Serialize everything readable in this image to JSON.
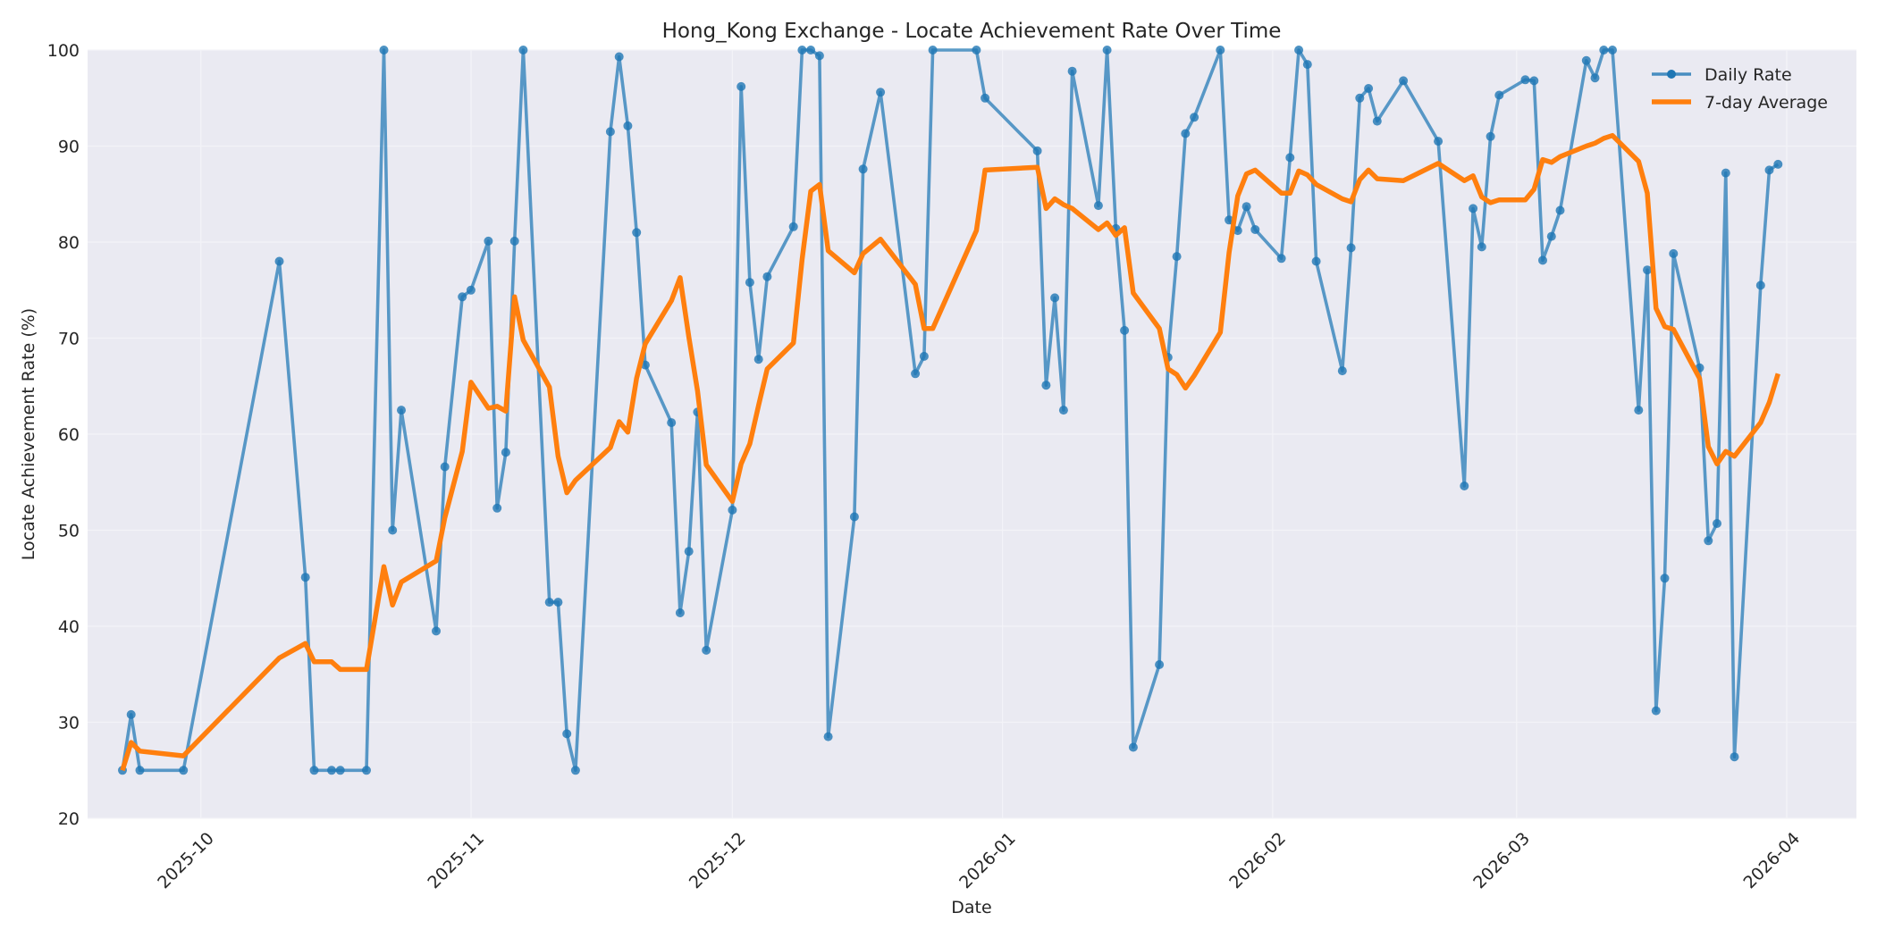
{
  "chart_data": {
    "type": "line",
    "title": "Hong_Kong Exchange - Locate Achievement Rate Over Time",
    "xlabel": "Date",
    "ylabel": "Locate Achievement Rate (%)",
    "ylim": [
      20,
      100
    ],
    "y_ticks": [
      "20",
      "30",
      "40",
      "50",
      "60",
      "70",
      "80",
      "90",
      "100"
    ],
    "xlim": [
      "2025-09-18",
      "2026-04-09"
    ],
    "x_ticks": [
      {
        "date": "2025-10-01",
        "label": "2025-10"
      },
      {
        "date": "2025-11-01",
        "label": "2025-11"
      },
      {
        "date": "2025-12-01",
        "label": "2025-12"
      },
      {
        "date": "2026-01-01",
        "label": "2026-01"
      },
      {
        "date": "2026-02-01",
        "label": "2026-02"
      },
      {
        "date": "2026-03-01",
        "label": "2026-03"
      },
      {
        "date": "2026-04-01",
        "label": "2026-04"
      }
    ],
    "grid": true,
    "legend_position": "top-right",
    "x": [
      "2025-09-22",
      "2025-09-23",
      "2025-09-24",
      "2025-09-29",
      "2025-10-10",
      "2025-10-13",
      "2025-10-14",
      "2025-10-16",
      "2025-10-17",
      "2025-10-20",
      "2025-10-22",
      "2025-10-23",
      "2025-10-24",
      "2025-10-28",
      "2025-10-29",
      "2025-10-31",
      "2025-11-01",
      "2025-11-03",
      "2025-11-04",
      "2025-11-05",
      "2025-11-06",
      "2025-11-07",
      "2025-11-10",
      "2025-11-11",
      "2025-11-12",
      "2025-11-13",
      "2025-11-17",
      "2025-11-18",
      "2025-11-19",
      "2025-11-20",
      "2025-11-21",
      "2025-11-24",
      "2025-11-25",
      "2025-11-26",
      "2025-11-27",
      "2025-11-28",
      "2025-12-01",
      "2025-12-02",
      "2025-12-03",
      "2025-12-04",
      "2025-12-05",
      "2025-12-08",
      "2025-12-09",
      "2025-12-10",
      "2025-12-11",
      "2025-12-12",
      "2025-12-15",
      "2025-12-16",
      "2025-12-18",
      "2025-12-22",
      "2025-12-23",
      "2025-12-24",
      "2025-12-29",
      "2025-12-30",
      "2026-01-05",
      "2026-01-06",
      "2026-01-07",
      "2026-01-08",
      "2026-01-09",
      "2026-01-12",
      "2026-01-13",
      "2026-01-14",
      "2026-01-15",
      "2026-01-16",
      "2026-01-19",
      "2026-01-20",
      "2026-01-21",
      "2026-01-22",
      "2026-01-23",
      "2026-01-26",
      "2026-01-27",
      "2026-01-28",
      "2026-01-29",
      "2026-01-30",
      "2026-02-02",
      "2026-02-03",
      "2026-02-04",
      "2026-02-05",
      "2026-02-06",
      "2026-02-09",
      "2026-02-10",
      "2026-02-11",
      "2026-02-12",
      "2026-02-13",
      "2026-02-16",
      "2026-02-20",
      "2026-02-23",
      "2026-02-24",
      "2026-02-25",
      "2026-02-26",
      "2026-02-27",
      "2026-03-02",
      "2026-03-03",
      "2026-03-04",
      "2026-03-05",
      "2026-03-06",
      "2026-03-09",
      "2026-03-10",
      "2026-03-11",
      "2026-03-12",
      "2026-03-15",
      "2026-03-16",
      "2026-03-17",
      "2026-03-18",
      "2026-03-19",
      "2026-03-22",
      "2026-03-23",
      "2026-03-24",
      "2026-03-25",
      "2026-03-26",
      "2026-03-29",
      "2026-03-30",
      "2026-03-31"
    ],
    "series": [
      {
        "name": "Daily Rate",
        "color": "#1f77b4",
        "values": [
          25.0,
          30.8,
          25.0,
          25.0,
          78.0,
          45.1,
          25.0,
          25.0,
          25.0,
          25.0,
          100.0,
          50.0,
          62.5,
          39.5,
          56.6,
          74.3,
          75.0,
          80.1,
          52.3,
          58.1,
          80.1,
          100.0,
          42.5,
          42.5,
          28.8,
          25.0,
          91.5,
          99.3,
          92.1,
          81.0,
          67.2,
          61.2,
          41.4,
          47.8,
          62.3,
          37.5,
          52.1,
          96.2,
          75.8,
          67.8,
          76.4,
          81.6,
          100.0,
          100.0,
          99.4,
          28.5,
          51.4,
          87.6,
          95.6,
          66.3,
          68.1,
          100.0,
          100.0,
          95.0,
          89.5,
          65.1,
          74.2,
          62.5,
          97.8,
          83.8,
          100.0,
          81.4,
          70.8,
          27.4,
          36.0,
          68.0,
          78.5,
          91.3,
          93.0,
          100.0,
          82.3,
          81.2,
          83.7,
          81.3,
          78.3,
          88.8,
          100.0,
          98.5,
          78.0,
          66.6,
          79.4,
          95.0,
          96.0,
          92.6,
          96.8,
          90.5,
          54.6,
          83.5,
          79.5,
          91.0,
          95.3,
          96.9,
          96.8,
          78.1,
          80.6,
          83.3,
          98.9,
          97.1,
          100.0,
          100.0,
          62.5,
          77.1,
          31.2,
          45.0,
          78.8,
          66.9,
          48.9,
          50.7,
          87.2,
          26.4,
          75.5,
          87.5,
          88.1
        ]
      },
      {
        "name": "7-day Average",
        "color": "#ff7f0e",
        "values": [
          25.0,
          27.9,
          27.0,
          26.5,
          36.7,
          38.2,
          36.3,
          36.3,
          35.5,
          35.5,
          46.2,
          42.2,
          44.6,
          46.8,
          51.3,
          58.2,
          65.4,
          62.7,
          62.9,
          62.4,
          74.3,
          69.8,
          64.9,
          57.7,
          53.9,
          55.2,
          58.6,
          61.3,
          60.2,
          65.8,
          69.4,
          73.9,
          76.3,
          70.1,
          64.5,
          56.8,
          53.0,
          56.9,
          59.0,
          63.0,
          66.8,
          69.5,
          78.2,
          85.3,
          86.0,
          79.1,
          76.8,
          78.8,
          80.3,
          75.6,
          71.0,
          71.0,
          81.2,
          87.5,
          87.8,
          83.5,
          84.5,
          83.9,
          83.5,
          81.3,
          82.0,
          80.7,
          81.5,
          74.7,
          71.0,
          66.8,
          66.2,
          64.8,
          66.1,
          70.6,
          78.9,
          84.8,
          87.1,
          87.5,
          85.1,
          85.1,
          87.4,
          87.0,
          86.0,
          84.5,
          84.2,
          86.5,
          87.5,
          86.6,
          86.4,
          88.2,
          86.4,
          86.9,
          84.7,
          84.1,
          84.4,
          84.4,
          85.5,
          88.6,
          88.3,
          88.9,
          90.0,
          90.3,
          90.8,
          91.1,
          88.4,
          85.1,
          73.1,
          71.2,
          70.9,
          65.8,
          58.7,
          56.9,
          58.2,
          57.7,
          61.2,
          63.3,
          66.3
        ]
      }
    ]
  }
}
